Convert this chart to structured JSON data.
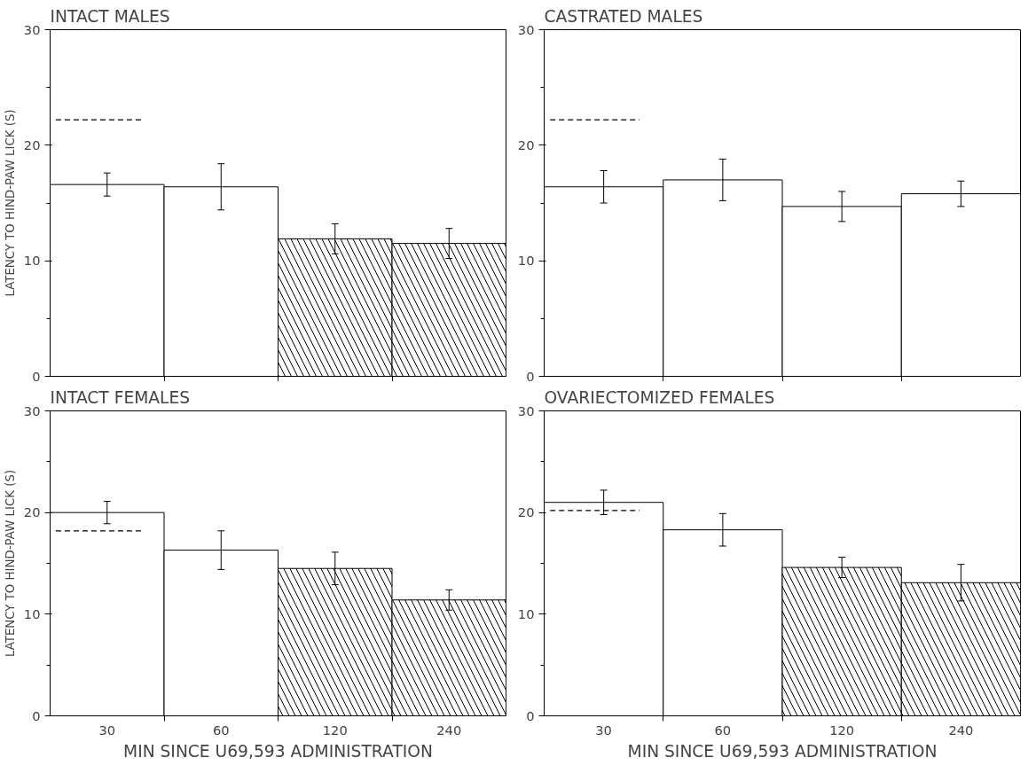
{
  "chart_data": [
    {
      "type": "bar",
      "title": "INTACT MALES",
      "ylabel": "LATENCY TO HIND-PAW LICK (S)",
      "categories": [
        "30",
        "60",
        "120",
        "240"
      ],
      "ylim": [
        0,
        30
      ],
      "yticks": [
        0,
        10,
        20,
        30
      ],
      "tick_labels": "y",
      "grid": false,
      "series": [
        {
          "color": "#ffffff",
          "values": [
            16.6,
            16.4,
            null,
            null
          ],
          "errors": [
            1.0,
            2.0,
            null,
            null
          ]
        },
        {
          "color": "#ffffff",
          "values": [
            null,
            null,
            11.9,
            11.5
          ],
          "errors": [
            null,
            null,
            1.3,
            1.3
          ]
        }
      ],
      "ref_lines": [
        {
          "axis": "y",
          "value": 22.2,
          "line_style": "dashed",
          "color": "#000000"
        }
      ]
    },
    {
      "type": "bar",
      "title": "CASTRATED MALES",
      "categories": [
        "30",
        "60",
        "120",
        "240"
      ],
      "ylim": [
        0,
        30
      ],
      "yticks": [
        0,
        10,
        20,
        30
      ],
      "tick_labels": "y",
      "grid": false,
      "series": [
        {
          "color": "#ffffff",
          "values": [
            16.4,
            17.0,
            14.7,
            15.8
          ],
          "errors": [
            1.4,
            1.8,
            1.3,
            1.1
          ]
        }
      ],
      "ref_lines": [
        {
          "axis": "y",
          "value": 22.2,
          "line_style": "dashed",
          "color": "#000000"
        }
      ]
    },
    {
      "type": "bar",
      "title": "INTACT FEMALES",
      "ylabel": "LATENCY TO HIND-PAW LICK (S)",
      "xlabel": "MIN SINCE U69,593 ADMINISTRATION",
      "categories": [
        "30",
        "60",
        "120",
        "240"
      ],
      "ylim": [
        0,
        30
      ],
      "yticks": [
        0,
        10,
        20,
        30
      ],
      "grid": false,
      "series": [
        {
          "color": "#ffffff",
          "values": [
            20.0,
            16.3,
            null,
            null
          ],
          "errors": [
            1.1,
            1.9,
            null,
            null
          ]
        },
        {
          "color": "#ffffff",
          "values": [
            null,
            null,
            14.5,
            11.4
          ],
          "errors": [
            null,
            null,
            1.6,
            1.0
          ]
        }
      ],
      "ref_lines": [
        {
          "axis": "y",
          "value": 18.2,
          "line_style": "dashed",
          "color": "#000000"
        }
      ]
    },
    {
      "type": "bar",
      "title": "OVARIECTOMIZED FEMALES",
      "xlabel": "MIN SINCE U69,593 ADMINISTRATION",
      "categories": [
        "30",
        "60",
        "120",
        "240"
      ],
      "ylim": [
        0,
        30
      ],
      "yticks": [
        0,
        10,
        20,
        30
      ],
      "grid": false,
      "series": [
        {
          "color": "#ffffff",
          "values": [
            21.0,
            18.3,
            null,
            null
          ],
          "errors": [
            1.2,
            1.6,
            null,
            null
          ]
        },
        {
          "color": "#ffffff",
          "values": [
            null,
            null,
            14.6,
            13.1
          ],
          "errors": [
            null,
            null,
            1.0,
            1.8
          ]
        }
      ],
      "ref_lines": [
        {
          "axis": "y",
          "value": 20.2,
          "line_style": "dashed",
          "color": "#000000"
        }
      ]
    }
  ]
}
